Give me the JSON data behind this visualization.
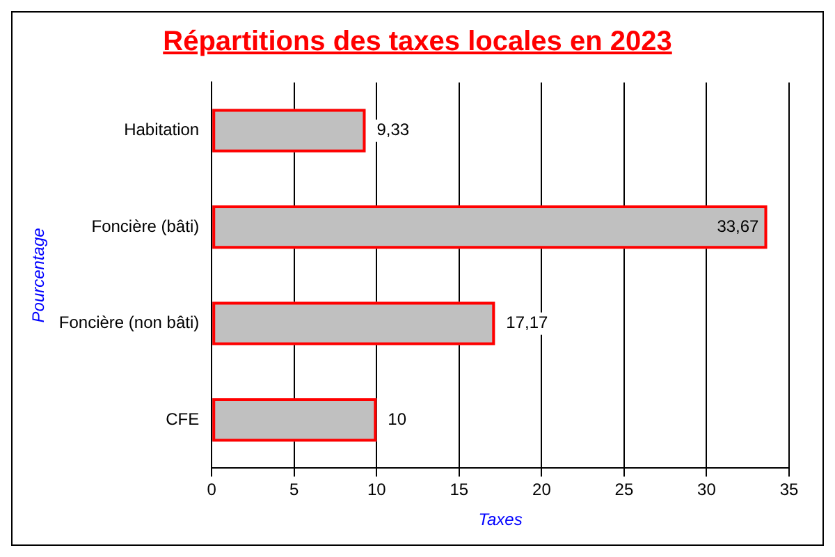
{
  "chart_data": {
    "type": "bar",
    "orientation": "horizontal",
    "title": "Répartitions des taxes locales en 2023",
    "categories": [
      "Habitation",
      "Foncière (bâti)",
      "Foncière (non bâti)",
      "CFE"
    ],
    "values": [
      9.33,
      33.67,
      17.17,
      10
    ],
    "value_labels": [
      "9,33",
      "33,67",
      "17,17",
      "10"
    ],
    "color": "#c0c0c0",
    "xlabel": "Taxes",
    "ylabel": "Pourcentage",
    "xlim": [
      0,
      35
    ],
    "xticks": [
      0,
      5,
      10,
      15,
      20,
      25,
      30,
      35
    ],
    "grid": "x",
    "legend": false
  }
}
